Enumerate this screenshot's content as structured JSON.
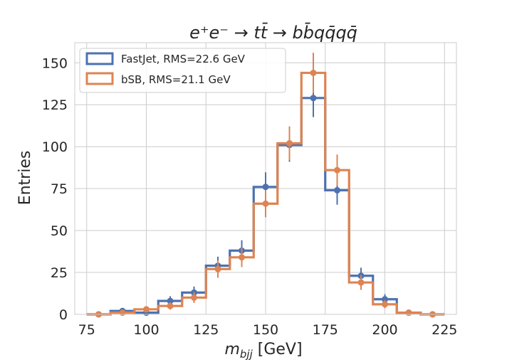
{
  "chart_data": {
    "type": "histogram-step",
    "title": "e⁺e⁻ → tt̄ → bb̄qq̄qq̄",
    "xlabel": "m_bjj [GeV]",
    "ylabel": "Entries",
    "xlim": [
      70,
      230
    ],
    "ylim": [
      0,
      162
    ],
    "xticks": [
      75,
      100,
      125,
      150,
      175,
      200,
      225
    ],
    "yticks": [
      0,
      25,
      50,
      75,
      100,
      125,
      150
    ],
    "grid": true,
    "legend_position": "top-left",
    "bin_edges": [
      75,
      85,
      95,
      105,
      115,
      125,
      135,
      145,
      155,
      165,
      175,
      185,
      195,
      205,
      215,
      225
    ],
    "series": [
      {
        "name": "FastJet, RMS=22.6 GeV",
        "color": "#4c72b0",
        "values": [
          0,
          2,
          1,
          8,
          13,
          29,
          38,
          76,
          101,
          129,
          74,
          23,
          9,
          1,
          0
        ],
        "errors": [
          0,
          1.4,
          1,
          2.8,
          3.6,
          5.4,
          6.2,
          8.7,
          10,
          11.4,
          8.6,
          4.8,
          3,
          1,
          0
        ]
      },
      {
        "name": "bSB, RMS=21.1 GeV",
        "color": "#dd8452",
        "values": [
          0,
          1,
          3,
          5,
          10,
          27,
          34,
          66,
          102,
          144,
          86,
          19,
          6,
          1,
          0
        ],
        "errors": [
          0,
          1,
          1.7,
          2.2,
          3.2,
          5.2,
          5.8,
          8.1,
          10.1,
          12,
          9.3,
          4.4,
          2.4,
          1,
          0
        ]
      }
    ]
  }
}
